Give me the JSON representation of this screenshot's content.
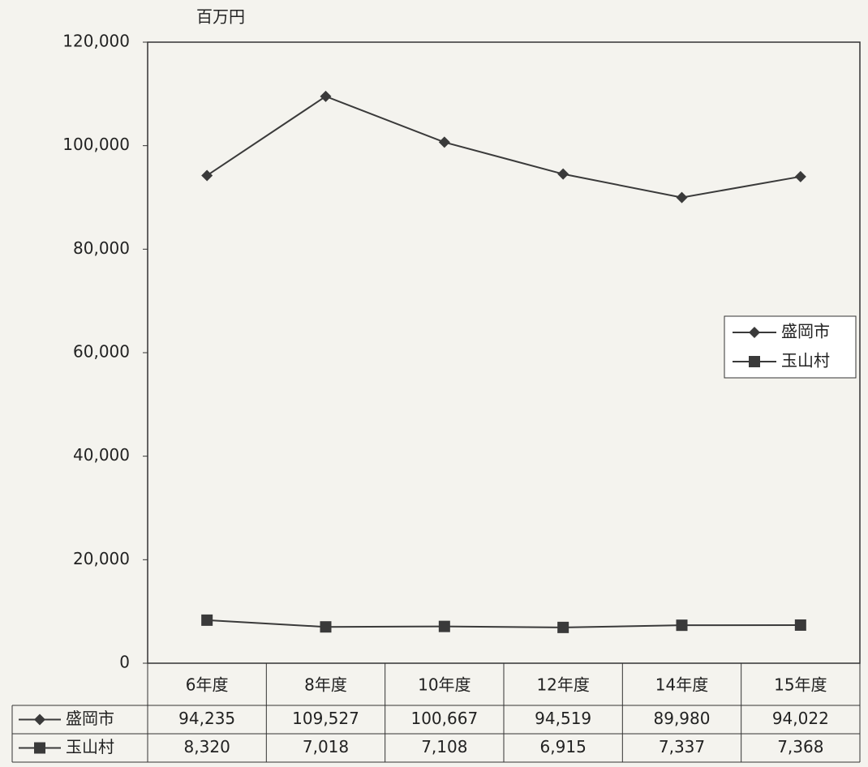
{
  "chart_data": {
    "type": "line",
    "y_label": "百万円",
    "categories": [
      "6年度",
      "8年度",
      "10年度",
      "12年度",
      "14年度",
      "15年度"
    ],
    "series": [
      {
        "name": "盛岡市",
        "color": "#3a3a3a",
        "marker": "diamond",
        "values": [
          94235,
          109527,
          100667,
          94519,
          89980,
          94022
        ],
        "value_labels": [
          "94,235",
          "109,527",
          "100,667",
          "94,519",
          "89,980",
          "94,022"
        ]
      },
      {
        "name": "玉山村",
        "color": "#3a3a3a",
        "marker": "square",
        "values": [
          8320,
          7018,
          7108,
          6915,
          7337,
          7368
        ],
        "value_labels": [
          "8,320",
          "7,018",
          "7,108",
          "6,915",
          "7,337",
          "7,368"
        ]
      }
    ],
    "ylim": [
      0,
      120000
    ],
    "yticks": [
      0,
      {
        "value": 20000,
        "label": "20,000"
      },
      {
        "value": 40000,
        "label": "40,000"
      },
      {
        "value": 60000,
        "label": "60,000"
      },
      {
        "value": 80000,
        "label": "80,000"
      },
      {
        "value": 100000,
        "label": "100,000"
      },
      {
        "value": 120000,
        "label": "120,000"
      }
    ],
    "grid": false,
    "legend": "right",
    "data_table": true
  }
}
